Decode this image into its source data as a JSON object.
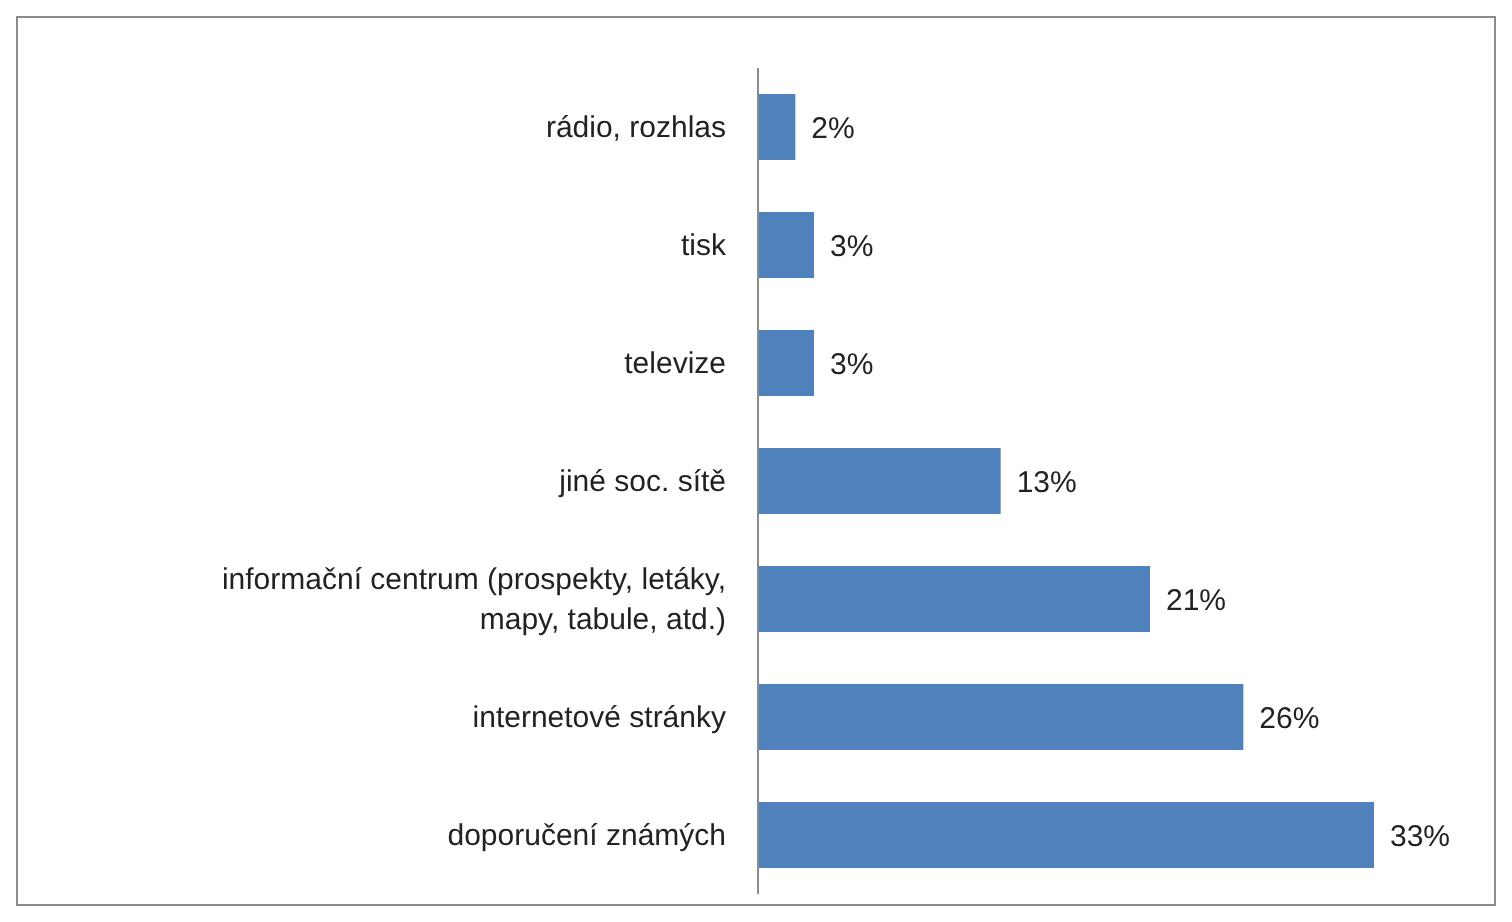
{
  "chart_data": {
    "type": "bar",
    "orientation": "horizontal",
    "categories": [
      "rádio, rozhlas",
      "tisk",
      "televize",
      "jiné soc. sítě",
      "informační centrum (prospekty, letáky, mapy, tabule, atd.)",
      "internetové stránky",
      "doporučení známých"
    ],
    "values": [
      2,
      3,
      3,
      13,
      21,
      26,
      33
    ],
    "value_labels": [
      "2%",
      "3%",
      "3%",
      "13%",
      "21%",
      "26%",
      "33%"
    ],
    "color": "#4f81bd",
    "grid": false,
    "legend": false
  }
}
